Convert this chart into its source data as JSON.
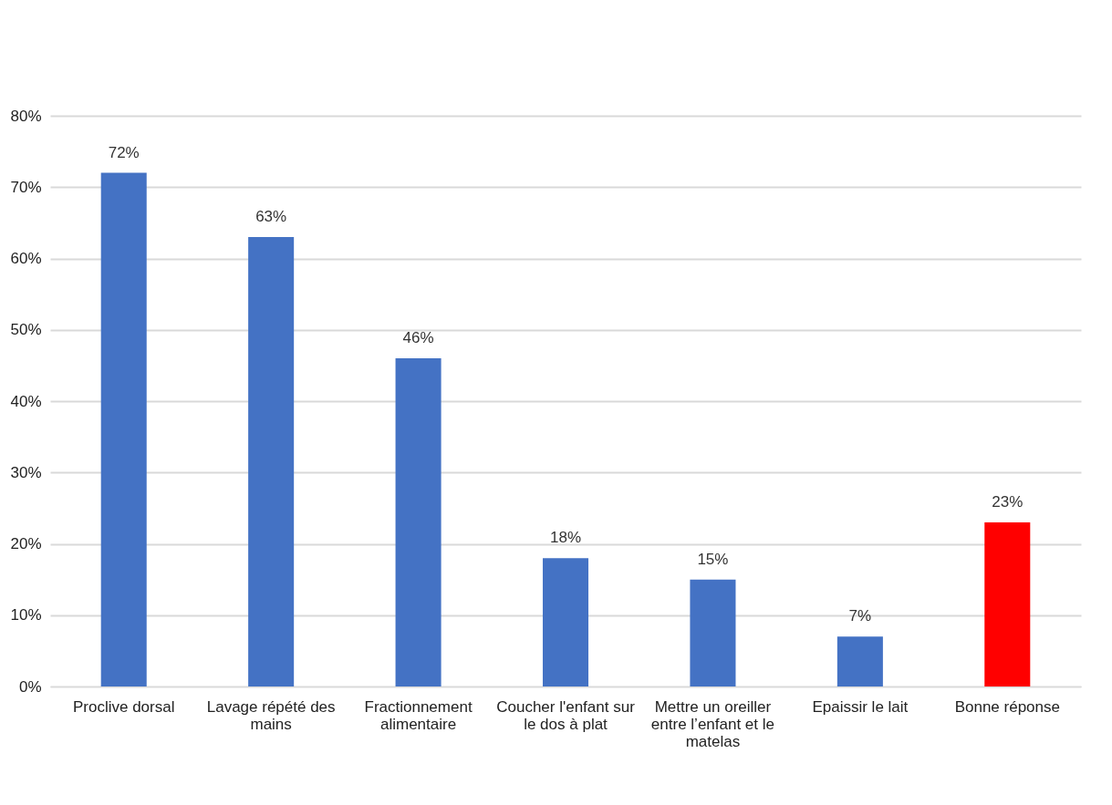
{
  "chart_data": {
    "type": "bar",
    "categories": [
      "Proclive dorsal",
      "Lavage répété des mains",
      "Fractionnement alimentaire",
      "Coucher l'enfant sur le dos à plat",
      "Mettre un oreiller entre l’enfant et le matelas",
      "Epaissir le lait",
      "Bonne réponse"
    ],
    "values": [
      72,
      63,
      46,
      18,
      15,
      7,
      23
    ],
    "colors": [
      "#4472c4",
      "#4472c4",
      "#4472c4",
      "#4472c4",
      "#4472c4",
      "#4472c4",
      "#ff0000"
    ],
    "value_labels": [
      "72%",
      "63%",
      "46%",
      "18%",
      "15%",
      "7%",
      "23%"
    ],
    "ylim": [
      0,
      80
    ],
    "yticks": [
      {
        "value": 0,
        "label": "0%"
      },
      {
        "value": 10,
        "label": "10%"
      },
      {
        "value": 20,
        "label": "20%"
      },
      {
        "value": 30,
        "label": "30%"
      },
      {
        "value": 40,
        "label": "40%"
      },
      {
        "value": 50,
        "label": "50%"
      },
      {
        "value": 60,
        "label": "60%"
      },
      {
        "value": 70,
        "label": "70%"
      },
      {
        "value": 80,
        "label": "80%"
      }
    ],
    "grid": "y"
  }
}
